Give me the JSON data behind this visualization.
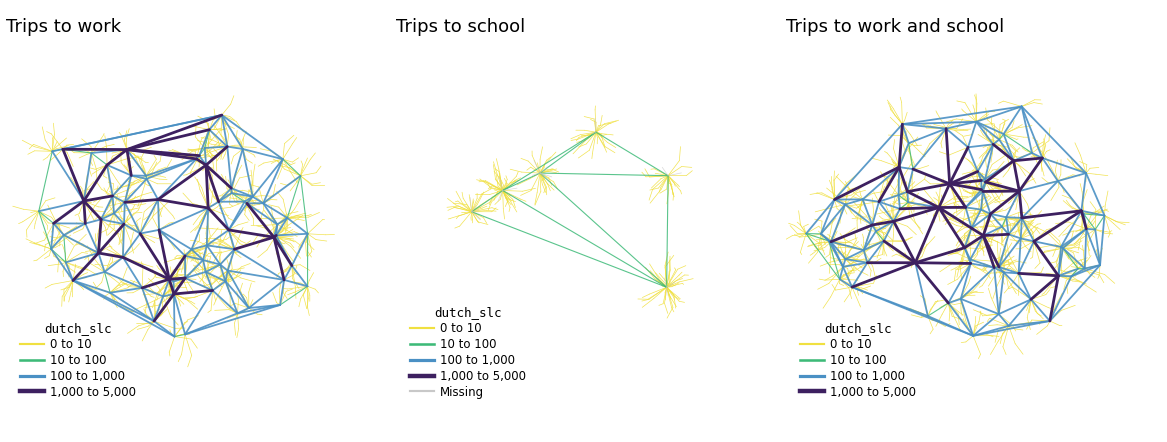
{
  "titles": [
    "Trips to work",
    "Trips to school",
    "Trips to work and school"
  ],
  "legend_title": "dutch_slc",
  "legend_entries_1": [
    {
      "label": "0 to 10",
      "color": "#f0e040",
      "lw": 0.7
    },
    {
      "label": "10 to 100",
      "color": "#3dba78",
      "lw": 0.9
    },
    {
      "label": "100 to 1,000",
      "color": "#4a90c4",
      "lw": 1.2
    },
    {
      "label": "1,000 to 5,000",
      "color": "#3d2060",
      "lw": 1.8
    }
  ],
  "legend_entries_2": [
    {
      "label": "0 to 10",
      "color": "#f0e040",
      "lw": 0.7
    },
    {
      "label": "10 to 100",
      "color": "#3dba78",
      "lw": 0.9
    },
    {
      "label": "100 to 1,000",
      "color": "#4a90c4",
      "lw": 1.2
    },
    {
      "label": "1,000 to 5,000",
      "color": "#3d2060",
      "lw": 1.8
    },
    {
      "label": "Missing",
      "color": "#c8c8c8",
      "lw": 0.7
    }
  ],
  "legend_entries_3": [
    {
      "label": "0 to 10",
      "color": "#f0e040",
      "lw": 0.7
    },
    {
      "label": "10 to 100",
      "color": "#3dba78",
      "lw": 0.9
    },
    {
      "label": "100 to 1,000",
      "color": "#4a90c4",
      "lw": 1.2
    },
    {
      "label": "1,000 to 5,000",
      "color": "#3d2060",
      "lw": 1.8
    }
  ],
  "bg_color": "#ffffff",
  "title_fontsize": 13,
  "legend_fontsize": 8.5,
  "legend_title_fontsize": 9
}
